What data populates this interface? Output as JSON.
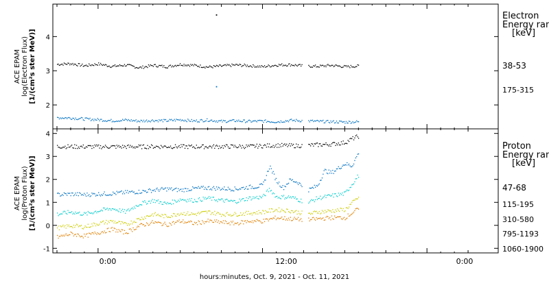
{
  "x_axis": {
    "label": "hours:minutes, Oct.  9, 2021 - Oct. 11, 2021",
    "tick_labels": [
      "0:00",
      "12:00",
      "0:00"
    ]
  },
  "chart_data": [
    {
      "type": "scatter",
      "panel": "electron",
      "ylabel_lines": [
        "ACE EPAM",
        "log(Electron Flux)",
        "[1/(cm²s ster MeV)]"
      ],
      "ylim": [
        1.3,
        4.95
      ],
      "yticks": [
        2,
        3,
        4
      ],
      "xlim_hours": [
        -3.3,
        29.2
      ],
      "legend_title": [
        "Electron",
        "Energy ran",
        "[keV]"
      ],
      "series": [
        {
          "name": "38-53",
          "color": "#000000",
          "x": [
            -3.0,
            -2.0,
            -1.0,
            0.0,
            1.0,
            2.0,
            3.0,
            4.0,
            5.0,
            6.0,
            7.0,
            8.0,
            9.0,
            10.0,
            11.0,
            12.0,
            13.0,
            14.0,
            15.0,
            16.0,
            17.0,
            18.0,
            19.0
          ],
          "y": [
            3.2,
            3.22,
            3.16,
            3.21,
            3.14,
            3.18,
            3.1,
            3.17,
            3.13,
            3.2,
            3.17,
            3.12,
            3.15,
            3.18,
            3.16,
            3.13,
            3.18,
            3.19,
            3.15,
            3.14,
            3.17,
            3.13,
            3.15
          ]
        },
        {
          "name": "175-315",
          "color": "#0070c0",
          "x": [
            -3.0,
            -2.0,
            -1.0,
            0.0,
            1.0,
            2.0,
            3.0,
            4.0,
            5.0,
            6.0,
            7.0,
            8.0,
            9.0,
            10.0,
            11.0,
            12.0,
            13.0,
            14.0,
            15.0,
            16.0,
            17.0,
            18.0,
            19.0
          ],
          "y": [
            1.64,
            1.63,
            1.6,
            1.58,
            1.55,
            1.57,
            1.54,
            1.56,
            1.55,
            1.58,
            1.54,
            1.57,
            1.53,
            1.55,
            1.53,
            1.54,
            1.52,
            1.56,
            1.55,
            1.53,
            1.52,
            1.51,
            1.52
          ]
        }
      ],
      "outliers": [
        {
          "series": "38-53",
          "x": 8.6,
          "y": 4.65
        },
        {
          "series": "175-315",
          "x": 8.6,
          "y": 2.55
        }
      ],
      "data_gap_hours": [
        14.9,
        15.3
      ]
    },
    {
      "type": "scatter",
      "panel": "proton",
      "ylabel_lines": [
        "ACE EPAM",
        "log(Proton Flux)",
        "[1/(cm²s ster MeV)]"
      ],
      "ylim": [
        -1.2,
        4.2
      ],
      "yticks": [
        -1,
        0,
        1,
        2,
        3,
        4
      ],
      "xlim_hours": [
        -3.3,
        29.2
      ],
      "legend_title": [
        "Proton",
        "Energy ran",
        "[keV]"
      ],
      "series": [
        {
          "name": "47-68",
          "color": "#000000",
          "x": [
            -3.0,
            -1.0,
            1.0,
            3.0,
            5.0,
            7.0,
            9.0,
            11.0,
            13.0,
            14.5,
            15.3,
            17.0,
            18.0,
            18.5,
            19.0
          ],
          "y": [
            3.45,
            3.44,
            3.44,
            3.44,
            3.45,
            3.44,
            3.45,
            3.45,
            3.5,
            3.48,
            3.5,
            3.55,
            3.62,
            3.78,
            3.9
          ]
        },
        {
          "name": "115-195",
          "color": "#0070c0",
          "x": [
            -3.0,
            -2.0,
            -1.0,
            0.0,
            1.0,
            2.0,
            3.0,
            4.0,
            5.0,
            6.0,
            7.0,
            8.0,
            9.0,
            10.0,
            11.0,
            11.5,
            12.0,
            12.5,
            13.0,
            13.5,
            14.0,
            14.5,
            15.3,
            16.0,
            16.5,
            17.0,
            17.5,
            18.0,
            18.5,
            19.0
          ],
          "y": [
            1.35,
            1.38,
            1.35,
            1.38,
            1.4,
            1.45,
            1.48,
            1.55,
            1.6,
            1.55,
            1.62,
            1.65,
            1.62,
            1.6,
            1.68,
            1.7,
            1.75,
            2.6,
            1.95,
            1.65,
            2.0,
            1.9,
            1.55,
            1.75,
            2.4,
            2.3,
            2.5,
            2.7,
            2.6,
            3.2
          ]
        },
        {
          "name": "310-580",
          "color": "#00cccc",
          "x": [
            -3.0,
            -2.0,
            -1.0,
            0.0,
            1.0,
            2.0,
            3.0,
            4.0,
            5.0,
            6.0,
            7.0,
            8.0,
            9.0,
            10.0,
            11.0,
            12.0,
            12.5,
            13.0,
            14.0,
            15.3,
            16.0,
            17.0,
            18.0,
            19.0
          ],
          "y": [
            0.5,
            0.6,
            0.5,
            0.65,
            0.75,
            0.6,
            0.95,
            1.1,
            0.95,
            1.15,
            1.1,
            1.2,
            1.1,
            1.05,
            1.2,
            1.25,
            1.6,
            1.25,
            1.25,
            1.0,
            1.2,
            1.3,
            1.4,
            2.2
          ]
        },
        {
          "name": "795-1193",
          "color": "#cccc00",
          "x": [
            -3.0,
            -2.0,
            -1.0,
            0.0,
            1.0,
            2.0,
            3.0,
            4.0,
            5.0,
            6.0,
            7.0,
            8.0,
            9.0,
            10.0,
            11.0,
            12.0,
            13.0,
            14.0,
            15.3,
            16.0,
            17.0,
            18.0,
            19.0
          ],
          "y": [
            -0.1,
            0.0,
            -0.05,
            0.1,
            0.2,
            0.05,
            0.3,
            0.5,
            0.4,
            0.55,
            0.5,
            0.6,
            0.5,
            0.5,
            0.55,
            0.6,
            0.7,
            0.65,
            0.5,
            0.6,
            0.65,
            0.7,
            1.25
          ]
        },
        {
          "name": "1060-1900",
          "color": "#e08000",
          "x": [
            -3.0,
            -2.0,
            -1.0,
            0.0,
            1.0,
            2.0,
            3.0,
            4.0,
            5.0,
            6.0,
            7.0,
            8.0,
            9.0,
            10.0,
            11.0,
            12.0,
            13.0,
            14.0,
            15.3,
            16.0,
            17.0,
            18.0,
            19.0
          ],
          "y": [
            -0.5,
            -0.35,
            -0.45,
            -0.3,
            -0.15,
            -0.3,
            0.0,
            0.15,
            0.05,
            0.2,
            0.1,
            0.2,
            0.15,
            0.1,
            0.2,
            0.2,
            0.35,
            0.3,
            0.25,
            0.3,
            0.35,
            0.35,
            0.75
          ]
        }
      ],
      "data_gap_hours": [
        14.9,
        15.3
      ]
    }
  ]
}
